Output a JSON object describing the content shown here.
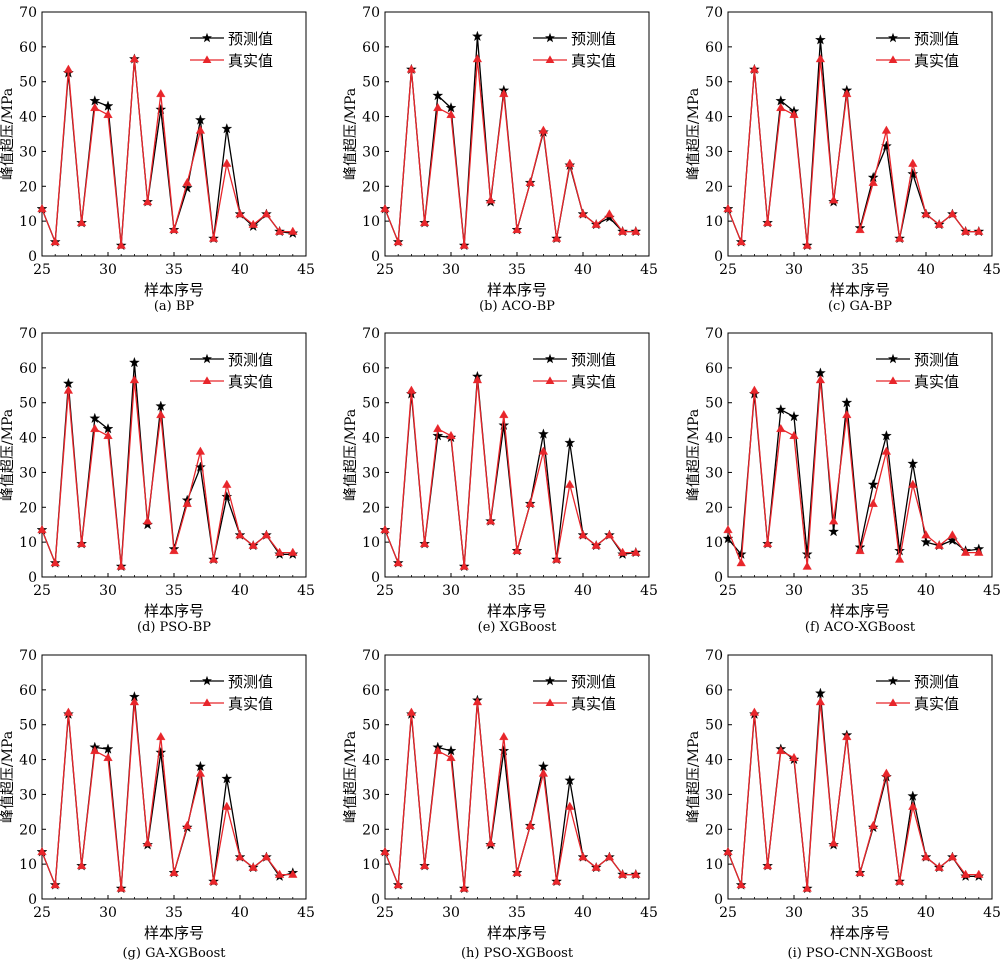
{
  "figure": {
    "x_ticks": [
      25,
      30,
      35,
      40,
      45
    ],
    "y_ticks": [
      0,
      10,
      20,
      30,
      40,
      50,
      60,
      70
    ],
    "colors": {
      "predicted": "#000000",
      "actual": "#e8262b"
    }
  },
  "chart_data": [
    {
      "type": "line",
      "caption": "(a) BP",
      "xlabel": "样本序号",
      "ylabel": "峰值超压/MPa",
      "xlim": [
        25,
        45
      ],
      "ylim": [
        0,
        70
      ],
      "legend_position": "top-right",
      "x": [
        25,
        26,
        27,
        28,
        29,
        30,
        31,
        32,
        33,
        34,
        35,
        36,
        37,
        38,
        39,
        40,
        41,
        42,
        43,
        44
      ],
      "series": [
        {
          "name": "预测值",
          "marker": "star",
          "values": [
            13.5,
            4,
            52.5,
            9.5,
            44.5,
            43,
            3,
            56.5,
            15.5,
            42,
            7.5,
            19.5,
            39,
            5,
            36.5,
            12,
            8.5,
            12,
            7,
            6.5
          ]
        },
        {
          "name": "真实值",
          "marker": "triangle",
          "values": [
            13.5,
            4,
            53.5,
            9.5,
            42.5,
            40.5,
            3,
            56.5,
            15.5,
            46.5,
            7.5,
            21,
            36,
            5,
            26.5,
            12,
            9,
            12,
            7,
            7
          ]
        }
      ]
    },
    {
      "type": "line",
      "caption": "(b) ACO-BP",
      "xlabel": "样本序号",
      "ylabel": "峰值超压/MPa",
      "xlim": [
        25,
        45
      ],
      "ylim": [
        0,
        70
      ],
      "legend_position": "top-right",
      "x": [
        25,
        26,
        27,
        28,
        29,
        30,
        31,
        32,
        33,
        34,
        35,
        36,
        37,
        38,
        39,
        40,
        41,
        42,
        43,
        44
      ],
      "series": [
        {
          "name": "预测值",
          "marker": "star",
          "values": [
            13.5,
            4,
            53.5,
            9.5,
            46,
            42.5,
            3,
            63,
            15.5,
            47.5,
            7.5,
            21,
            35.5,
            5,
            26,
            12,
            9,
            11,
            7,
            7
          ]
        },
        {
          "name": "真实值",
          "marker": "triangle",
          "values": [
            13.5,
            4,
            53.5,
            9.5,
            42.5,
            40.5,
            3,
            56.5,
            16,
            46.5,
            7.5,
            21,
            36,
            5,
            26.5,
            12,
            9,
            12,
            7,
            7
          ]
        }
      ]
    },
    {
      "type": "line",
      "caption": "(c) GA-BP",
      "xlabel": "样本序号",
      "ylabel": "峰值超压/MPa",
      "xlim": [
        25,
        45
      ],
      "ylim": [
        0,
        70
      ],
      "legend_position": "top-right",
      "x": [
        25,
        26,
        27,
        28,
        29,
        30,
        31,
        32,
        33,
        34,
        35,
        36,
        37,
        38,
        39,
        40,
        41,
        42,
        43,
        44
      ],
      "series": [
        {
          "name": "预测值",
          "marker": "star",
          "values": [
            13.5,
            4,
            53.5,
            9.5,
            44.5,
            41.5,
            3,
            62,
            15.5,
            47.5,
            8,
            22.5,
            31.5,
            5,
            23.5,
            12,
            9,
            12,
            7,
            7
          ]
        },
        {
          "name": "真实值",
          "marker": "triangle",
          "values": [
            13.5,
            4,
            53.5,
            9.5,
            42.5,
            40.5,
            3,
            56.5,
            16,
            46.5,
            7.5,
            21,
            36,
            5,
            26.5,
            12,
            9,
            12,
            7,
            7
          ]
        }
      ]
    },
    {
      "type": "line",
      "caption": "(d) PSO-BP",
      "xlabel": "样本序号",
      "ylabel": "峰值超压/MPa",
      "xlim": [
        25,
        45
      ],
      "ylim": [
        0,
        70
      ],
      "legend_position": "top-right",
      "x": [
        25,
        26,
        27,
        28,
        29,
        30,
        31,
        32,
        33,
        34,
        35,
        36,
        37,
        38,
        39,
        40,
        41,
        42,
        43,
        44
      ],
      "series": [
        {
          "name": "预测值",
          "marker": "star",
          "values": [
            13.5,
            4,
            55.5,
            9.5,
            45.5,
            42.5,
            3,
            61.5,
            15,
            49,
            8,
            22,
            31.5,
            5,
            23,
            12,
            9,
            12,
            6.5,
            6.5
          ]
        },
        {
          "name": "真实值",
          "marker": "triangle",
          "values": [
            13.5,
            4,
            53.5,
            9.5,
            42.5,
            40.5,
            3,
            56.5,
            16,
            46.5,
            7.5,
            21,
            36,
            5,
            26.5,
            12,
            9,
            12,
            7,
            7
          ]
        }
      ]
    },
    {
      "type": "line",
      "caption": "(e) XGBoost",
      "xlabel": "样本序号",
      "ylabel": "峰值超压/MPa",
      "xlim": [
        25,
        45
      ],
      "ylim": [
        0,
        70
      ],
      "legend_position": "top-right",
      "x": [
        25,
        26,
        27,
        28,
        29,
        30,
        31,
        32,
        33,
        34,
        35,
        36,
        37,
        38,
        39,
        40,
        41,
        42,
        43,
        44
      ],
      "series": [
        {
          "name": "预测值",
          "marker": "star",
          "values": [
            13.5,
            4,
            52.5,
            9.5,
            40.5,
            40,
            3,
            57.5,
            16,
            43.5,
            7.5,
            21,
            41,
            5,
            38.5,
            12,
            9,
            12,
            6.5,
            7
          ]
        },
        {
          "name": "真实值",
          "marker": "triangle",
          "values": [
            13.5,
            4,
            53.5,
            9.5,
            42.5,
            40.5,
            3,
            56.5,
            16,
            46.5,
            7.5,
            21,
            36,
            5,
            26.5,
            12,
            9,
            12,
            7,
            7
          ]
        }
      ]
    },
    {
      "type": "line",
      "caption": "(f) ACO-XGBoost",
      "xlabel": "样本序号",
      "ylabel": "峰值超压/MPa",
      "xlim": [
        25,
        45
      ],
      "ylim": [
        0,
        70
      ],
      "legend_position": "top-right",
      "x": [
        25,
        26,
        27,
        28,
        29,
        30,
        31,
        32,
        33,
        34,
        35,
        36,
        37,
        38,
        39,
        40,
        41,
        42,
        43,
        44
      ],
      "series": [
        {
          "name": "预测值",
          "marker": "star",
          "values": [
            11,
            6.5,
            52.5,
            9.5,
            48,
            46,
            6.5,
            58.5,
            13,
            50,
            8.5,
            26.5,
            40.5,
            7.5,
            32.5,
            10,
            9,
            10.5,
            7.5,
            8
          ]
        },
        {
          "name": "真实值",
          "marker": "triangle",
          "values": [
            13.5,
            4,
            53.5,
            9.5,
            42.5,
            40.5,
            3,
            56.5,
            16,
            46.5,
            7.5,
            21,
            36,
            5,
            26.5,
            12,
            9,
            12,
            7,
            7
          ]
        }
      ]
    },
    {
      "type": "line",
      "caption": "(g) GA-XGBoost",
      "xlabel": "样本序号",
      "ylabel": "峰值超压/MPa",
      "xlim": [
        25,
        45
      ],
      "ylim": [
        0,
        70
      ],
      "legend_position": "top-right",
      "x": [
        25,
        26,
        27,
        28,
        29,
        30,
        31,
        32,
        33,
        34,
        35,
        36,
        37,
        38,
        39,
        40,
        41,
        42,
        43,
        44
      ],
      "series": [
        {
          "name": "预测值",
          "marker": "star",
          "values": [
            13.5,
            4,
            53,
            9.5,
            43.5,
            43,
            3,
            58,
            15.5,
            42,
            7.5,
            20.5,
            38,
            5,
            34.5,
            12,
            9,
            12,
            6.5,
            7.5
          ]
        },
        {
          "name": "真实值",
          "marker": "triangle",
          "values": [
            13.5,
            4,
            53.5,
            9.5,
            42.5,
            40.5,
            3,
            56.5,
            16,
            46.5,
            7.5,
            21,
            36,
            5,
            26.5,
            12,
            9,
            12,
            7,
            7
          ]
        }
      ]
    },
    {
      "type": "line",
      "caption": "(h) PSO-XGBoost",
      "xlabel": "样本序号",
      "ylabel": "峰值超压/MPa",
      "xlim": [
        25,
        45
      ],
      "ylim": [
        0,
        70
      ],
      "legend_position": "top-right",
      "x": [
        25,
        26,
        27,
        28,
        29,
        30,
        31,
        32,
        33,
        34,
        35,
        36,
        37,
        38,
        39,
        40,
        41,
        42,
        43,
        44
      ],
      "series": [
        {
          "name": "预测值",
          "marker": "star",
          "values": [
            13.5,
            4,
            53,
            9.5,
            43.5,
            42.5,
            3,
            57,
            15.5,
            42.5,
            7.5,
            21,
            38,
            5,
            34,
            12,
            9,
            12,
            7,
            7
          ]
        },
        {
          "name": "真实值",
          "marker": "triangle",
          "values": [
            13.5,
            4,
            53.5,
            9.5,
            42.5,
            40.5,
            3,
            56.5,
            16,
            46.5,
            7.5,
            21,
            36,
            5,
            26.5,
            12,
            9,
            12,
            7,
            7
          ]
        }
      ]
    },
    {
      "type": "line",
      "caption": "(i) PSO-CNN-XGBoost",
      "xlabel": "样本序号",
      "ylabel": "峰值超压/MPa",
      "xlim": [
        25,
        45
      ],
      "ylim": [
        0,
        70
      ],
      "legend_position": "top-right",
      "x": [
        25,
        26,
        27,
        28,
        29,
        30,
        31,
        32,
        33,
        34,
        35,
        36,
        37,
        38,
        39,
        40,
        41,
        42,
        43,
        44
      ],
      "series": [
        {
          "name": "预测值",
          "marker": "star",
          "values": [
            13.5,
            4,
            53,
            9.5,
            43,
            40,
            3,
            59,
            15.5,
            47,
            7.5,
            20.5,
            35,
            5,
            29.5,
            12,
            9,
            12,
            6.5,
            6.5
          ]
        },
        {
          "name": "真实值",
          "marker": "triangle",
          "values": [
            13.5,
            4,
            53.5,
            9.5,
            42.5,
            40.5,
            3,
            56.5,
            16,
            46.5,
            7.5,
            21,
            36,
            5,
            26.5,
            12,
            9,
            12,
            7,
            7
          ]
        }
      ]
    }
  ]
}
